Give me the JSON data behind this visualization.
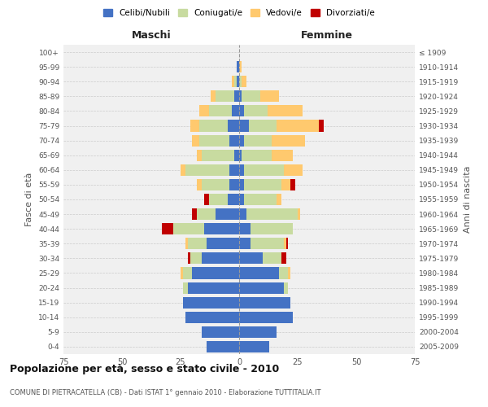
{
  "age_groups_bottom_to_top": [
    "0-4",
    "5-9",
    "10-14",
    "15-19",
    "20-24",
    "25-29",
    "30-34",
    "35-39",
    "40-44",
    "45-49",
    "50-54",
    "55-59",
    "60-64",
    "65-69",
    "70-74",
    "75-79",
    "80-84",
    "85-89",
    "90-94",
    "95-99",
    "100+"
  ],
  "birth_years_bottom_to_top": [
    "2005-2009",
    "2000-2004",
    "1995-1999",
    "1990-1994",
    "1985-1989",
    "1980-1984",
    "1975-1979",
    "1970-1974",
    "1965-1969",
    "1960-1964",
    "1955-1959",
    "1950-1954",
    "1945-1949",
    "1940-1944",
    "1935-1939",
    "1930-1934",
    "1925-1929",
    "1920-1924",
    "1915-1919",
    "1910-1914",
    "≤ 1909"
  ],
  "maschi": {
    "celibi": [
      14,
      16,
      23,
      24,
      22,
      20,
      16,
      14,
      15,
      10,
      5,
      4,
      4,
      2,
      4,
      5,
      3,
      2,
      1,
      1,
      0
    ],
    "coniugati": [
      0,
      0,
      0,
      0,
      2,
      4,
      5,
      8,
      13,
      8,
      8,
      12,
      19,
      14,
      13,
      12,
      10,
      8,
      1,
      0,
      0
    ],
    "vedovi": [
      0,
      0,
      0,
      0,
      0,
      1,
      0,
      1,
      0,
      0,
      0,
      2,
      2,
      2,
      3,
      4,
      4,
      2,
      1,
      0,
      0
    ],
    "divorziati": [
      0,
      0,
      0,
      0,
      0,
      0,
      1,
      0,
      5,
      2,
      2,
      0,
      0,
      0,
      0,
      0,
      0,
      0,
      0,
      0,
      0
    ]
  },
  "femmine": {
    "nubili": [
      13,
      16,
      23,
      22,
      19,
      17,
      10,
      5,
      5,
      3,
      2,
      2,
      2,
      1,
      2,
      4,
      2,
      1,
      0,
      0,
      0
    ],
    "coniugate": [
      0,
      0,
      0,
      0,
      2,
      4,
      8,
      14,
      18,
      22,
      14,
      16,
      17,
      13,
      12,
      12,
      10,
      8,
      1,
      0,
      0
    ],
    "vedove": [
      0,
      0,
      0,
      0,
      0,
      1,
      0,
      1,
      0,
      1,
      2,
      4,
      8,
      9,
      14,
      18,
      15,
      8,
      2,
      1,
      0
    ],
    "divorziate": [
      0,
      0,
      0,
      0,
      0,
      0,
      2,
      1,
      0,
      0,
      0,
      2,
      0,
      0,
      0,
      2,
      0,
      0,
      0,
      0,
      0
    ]
  },
  "colors": {
    "celibi": "#4472c4",
    "coniugati": "#c8dba0",
    "vedovi": "#ffc96e",
    "divorziati": "#c00000"
  },
  "xlim": 75,
  "title": "Popolazione per età, sesso e stato civile - 2010",
  "subtitle": "COMUNE DI PIETRACATELLA (CB) - Dati ISTAT 1° gennaio 2010 - Elaborazione TUTTITALIA.IT",
  "ylabel_left": "Fasce di età",
  "ylabel_right": "Anni di nascita",
  "label_maschi": "Maschi",
  "label_femmine": "Femmine",
  "bg_color": "#f0f0f0",
  "grid_color": "#cccccc",
  "legend": [
    "Celibi/Nubili",
    "Coniugati/e",
    "Vedovi/e",
    "Divorziati/e"
  ]
}
